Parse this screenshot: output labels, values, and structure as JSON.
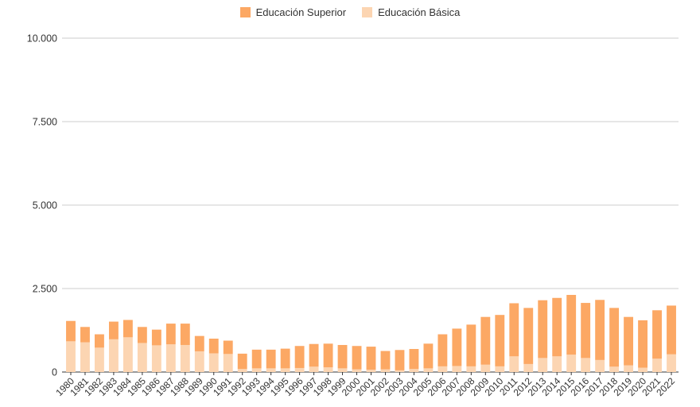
{
  "colors": {
    "superior": "#fca864",
    "basica": "#fcd5b2",
    "grid": "#cccccc",
    "axis": "#333333"
  },
  "legend": {
    "superior_label": "Educación Superior",
    "basica_label": "Educación Básica"
  },
  "chart_data": {
    "type": "bar",
    "stacked": true,
    "legend_position": "top",
    "grid": true,
    "ylim": [
      0,
      10000
    ],
    "yticks": [
      0,
      2500,
      5000,
      7500,
      10000
    ],
    "ytick_labels": [
      "0",
      "2.500",
      "5.000",
      "7.500",
      "10.000"
    ],
    "categories": [
      "1980",
      "1981",
      "1982",
      "1983",
      "1984",
      "1985",
      "1986",
      "1987",
      "1988",
      "1989",
      "1990",
      "1991",
      "1992",
      "1993",
      "1994",
      "1995",
      "1996",
      "1997",
      "1998",
      "1999",
      "2000",
      "2001",
      "2002",
      "2003",
      "2004",
      "2005",
      "2006",
      "2007",
      "2008",
      "2009",
      "2010",
      "2011",
      "2012",
      "2013",
      "2014",
      "2015",
      "2016",
      "2017",
      "2018",
      "2019",
      "2020",
      "2021",
      "2022"
    ],
    "series": [
      {
        "name": "Educación Básica",
        "color": "#fcd5b2",
        "values": [
          920,
          890,
          730,
          980,
          1040,
          870,
          800,
          830,
          810,
          620,
          560,
          540,
          90,
          110,
          110,
          110,
          120,
          160,
          140,
          110,
          80,
          70,
          80,
          50,
          90,
          110,
          170,
          180,
          170,
          220,
          170,
          470,
          240,
          420,
          470,
          520,
          420,
          360,
          160,
          200,
          130,
          400,
          530
        ]
      },
      {
        "name": "Educación Superior",
        "color": "#fca864",
        "values": [
          610,
          460,
          400,
          530,
          520,
          480,
          470,
          620,
          640,
          460,
          440,
          400,
          460,
          560,
          560,
          590,
          660,
          680,
          710,
          700,
          700,
          690,
          550,
          610,
          600,
          740,
          960,
          1120,
          1250,
          1430,
          1540,
          1590,
          1680,
          1730,
          1750,
          1790,
          1650,
          1800,
          1760,
          1450,
          1420,
          1450,
          1460
        ]
      }
    ]
  }
}
